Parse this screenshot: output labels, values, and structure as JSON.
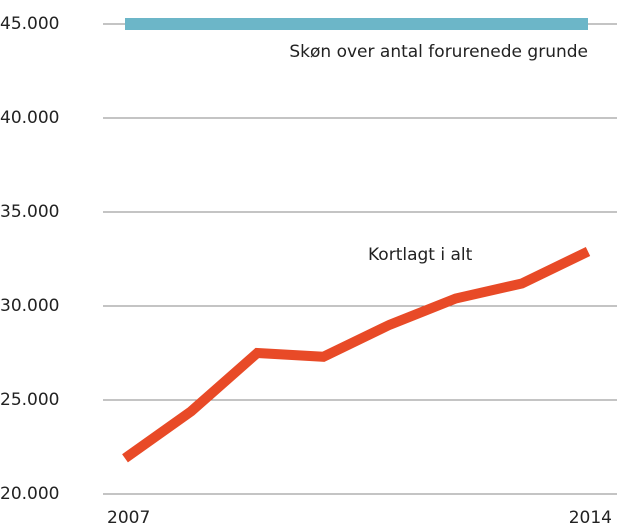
{
  "chart_data": {
    "type": "line",
    "categories": [
      "2007",
      null,
      null,
      null,
      null,
      null,
      null,
      "2014"
    ],
    "series": [
      {
        "name": "Skøn over antal forurenede grunde",
        "color": "#6cb6c8",
        "values": [
          45000,
          45000,
          45000,
          45000,
          45000,
          45000,
          45000,
          45000
        ]
      },
      {
        "name": "Kortlagt i alt",
        "color": "#e84a27",
        "values": [
          21900,
          24400,
          27500,
          27300,
          29000,
          30400,
          31200,
          32900
        ]
      }
    ],
    "ylim": [
      20000,
      45000
    ],
    "yticks": [
      {
        "value": 20000,
        "label": "20.000"
      },
      {
        "value": 25000,
        "label": "25.000"
      },
      {
        "value": 30000,
        "label": "30.000"
      },
      {
        "value": 35000,
        "label": "35.000"
      },
      {
        "value": 40000,
        "label": "40.000"
      },
      {
        "value": 45000,
        "label": "45.000"
      }
    ],
    "grid": true
  }
}
